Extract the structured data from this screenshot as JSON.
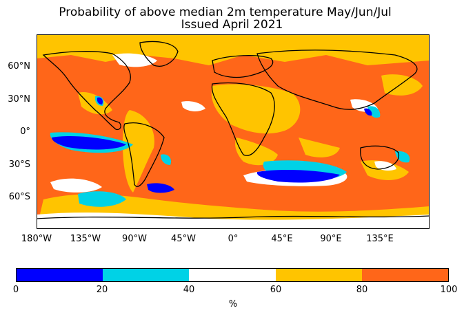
{
  "title": {
    "line1": "Probability of above median 2m temperature May/Jun/Jul",
    "line2": "Issued April 2021"
  },
  "map": {
    "y_ticks": [
      "60°N",
      "30°N",
      "0°",
      "30°S",
      "60°S"
    ],
    "x_ticks": [
      "180°W",
      "135°W",
      "90°W",
      "45°W",
      "0°",
      "45°E",
      "90°E",
      "135°E"
    ],
    "background_category_color": "#ff6619"
  },
  "colorbar": {
    "ticks": [
      "0",
      "20",
      "40",
      "60",
      "80",
      "100"
    ],
    "unit": "%",
    "bins": [
      {
        "range": "0-20",
        "color": "#0000ff"
      },
      {
        "range": "20-40",
        "color": "#00d2e6"
      },
      {
        "range": "40-60",
        "color": "#ffffff"
      },
      {
        "range": "60-80",
        "color": "#ffc400"
      },
      {
        "range": "80-100",
        "color": "#ff6619"
      }
    ]
  }
}
